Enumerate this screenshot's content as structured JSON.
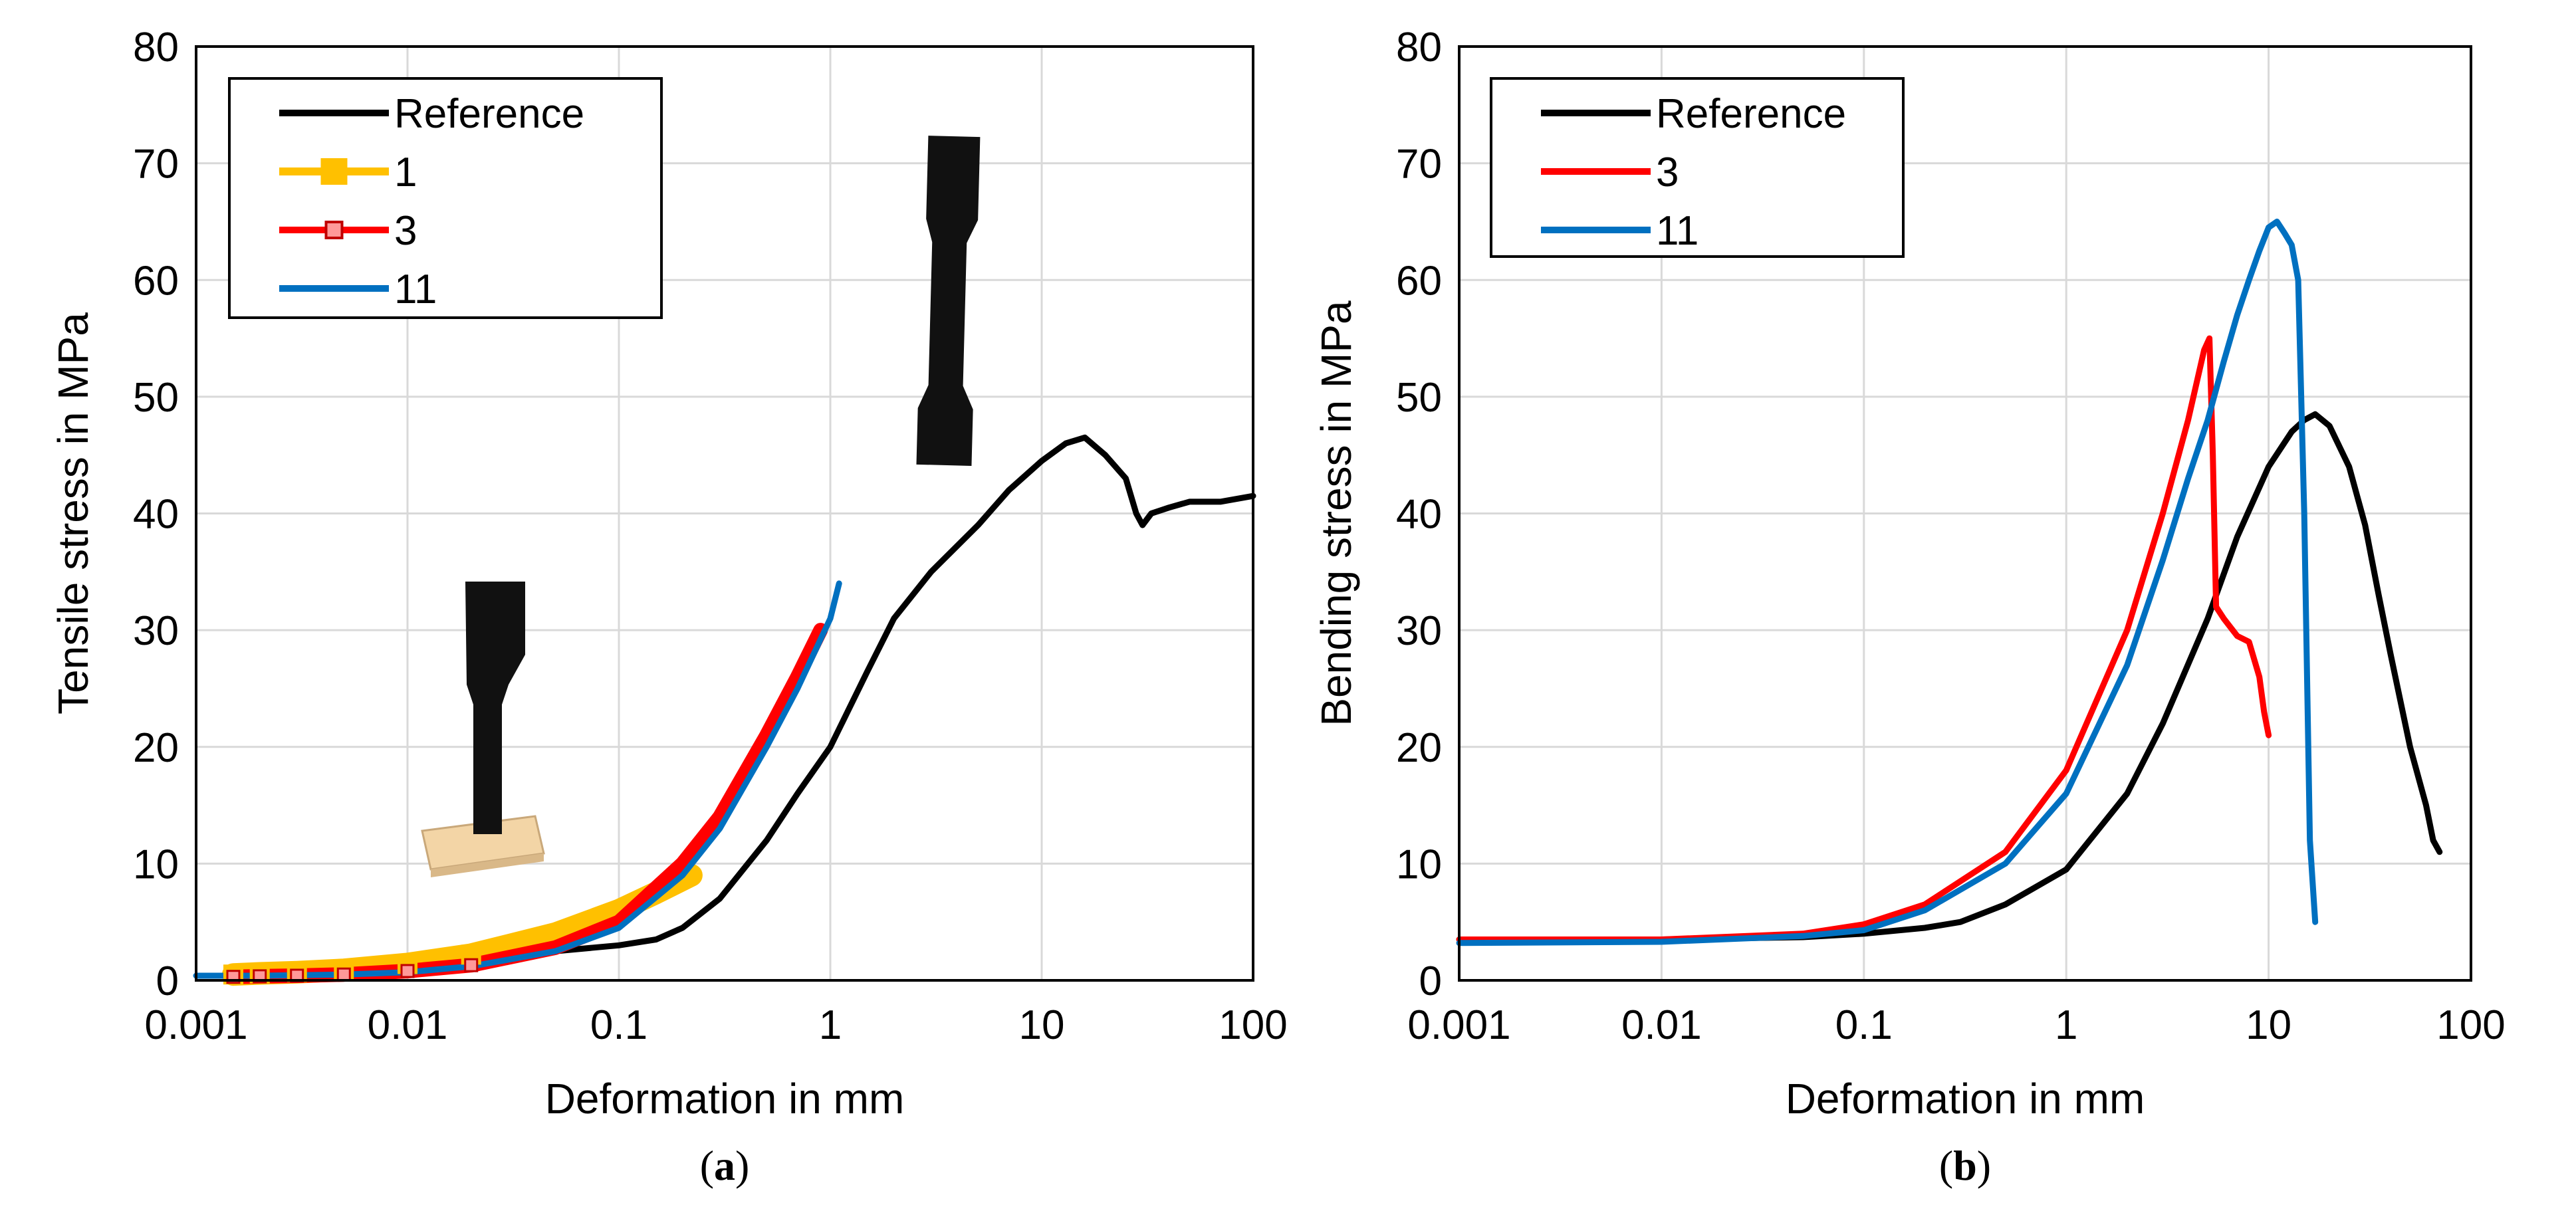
{
  "chart_data": [
    {
      "type": "line",
      "panel": "a",
      "caption": "(a)",
      "caption_letter": "a",
      "xlabel": "Deformation in mm",
      "ylabel": "Tensile stress in MPa",
      "xscale": "log",
      "xlim": [
        0.001,
        100
      ],
      "ylim": [
        0,
        80
      ],
      "xticks": [
        0.001,
        0.01,
        0.1,
        1,
        10,
        100
      ],
      "xtick_labels": [
        "0.001",
        "0.01",
        "0.1",
        "1",
        "10",
        "100"
      ],
      "yticks": [
        0,
        10,
        20,
        30,
        40,
        50,
        60,
        70,
        80
      ],
      "ytick_labels": [
        "0",
        "10",
        "20",
        "30",
        "40",
        "50",
        "60",
        "70",
        "80"
      ],
      "grid": true,
      "legend_position": "top-left",
      "series": [
        {
          "name": "Reference",
          "color": "#000000",
          "marker": "none",
          "x": [
            0.05,
            0.1,
            0.15,
            0.2,
            0.3,
            0.5,
            0.7,
            1,
            1.5,
            2,
            3,
            5,
            7,
            10,
            13,
            16,
            20,
            25,
            28,
            30,
            33,
            40,
            50,
            70,
            100
          ],
          "y": [
            2.5,
            3,
            3.5,
            4.5,
            7,
            12,
            16,
            20,
            26.5,
            31,
            35,
            39,
            42,
            44.5,
            46,
            46.5,
            45,
            43,
            40,
            39,
            40,
            40.5,
            41,
            41,
            41.5
          ]
        },
        {
          "name": "1",
          "color": "#FFC000",
          "marker": "square",
          "x": [
            0.0015,
            0.002,
            0.003,
            0.005,
            0.01,
            0.02,
            0.05,
            0.1,
            0.15,
            0.22
          ],
          "y": [
            0.5,
            0.6,
            0.7,
            0.9,
            1.4,
            2.2,
            4,
            6,
            7.5,
            9
          ]
        },
        {
          "name": "3",
          "color": "#FF0000",
          "marker": "small-square",
          "x": [
            0.0015,
            0.002,
            0.003,
            0.005,
            0.01,
            0.02,
            0.05,
            0.1,
            0.2,
            0.3,
            0.5,
            0.7,
            0.9
          ],
          "y": [
            0.3,
            0.35,
            0.4,
            0.5,
            0.8,
            1.3,
            2.8,
            5,
            10,
            14,
            21,
            26,
            30
          ]
        },
        {
          "name": "11",
          "color": "#0070C0",
          "marker": "none",
          "x": [
            0.001,
            0.002,
            0.005,
            0.01,
            0.02,
            0.05,
            0.1,
            0.2,
            0.3,
            0.5,
            0.7,
            1,
            1.1
          ],
          "y": [
            0.4,
            0.4,
            0.5,
            0.7,
            1.2,
            2.5,
            4.5,
            9,
            13,
            20,
            25,
            31,
            34
          ]
        }
      ]
    },
    {
      "type": "line",
      "panel": "b",
      "caption": "(b)",
      "caption_letter": "b",
      "xlabel": "Deformation in mm",
      "ylabel": "Bending stress in MPa",
      "xscale": "log",
      "xlim": [
        0.001,
        100
      ],
      "ylim": [
        0,
        80
      ],
      "xticks": [
        0.001,
        0.01,
        0.1,
        1,
        10,
        100
      ],
      "xtick_labels": [
        "0.001",
        "0.01",
        "0.1",
        "1",
        "10",
        "100"
      ],
      "yticks": [
        0,
        10,
        20,
        30,
        40,
        50,
        60,
        70,
        80
      ],
      "ytick_labels": [
        "0",
        "10",
        "20",
        "30",
        "40",
        "50",
        "60",
        "70",
        "80"
      ],
      "grid": true,
      "legend_position": "top-left",
      "series": [
        {
          "name": "Reference",
          "color": "#000000",
          "marker": "none",
          "x": [
            0.001,
            0.01,
            0.05,
            0.1,
            0.2,
            0.3,
            0.5,
            1,
            2,
            3,
            5,
            7,
            10,
            13,
            15,
            17,
            20,
            25,
            30,
            35,
            40,
            50,
            60,
            65,
            70
          ],
          "y": [
            3.5,
            3.5,
            3.7,
            4,
            4.5,
            5,
            6.5,
            9.5,
            16,
            22,
            31,
            38,
            44,
            47,
            48,
            48.5,
            47.5,
            44,
            39,
            33,
            28,
            20,
            15,
            12,
            11
          ]
        },
        {
          "name": "3",
          "color": "#FF0000",
          "marker": "none",
          "x": [
            0.001,
            0.01,
            0.05,
            0.1,
            0.2,
            0.5,
            1,
            2,
            3,
            4,
            4.8,
            5.1,
            5.3,
            5.5,
            6,
            7,
            8,
            9,
            9.5,
            10
          ],
          "y": [
            3.5,
            3.5,
            4,
            4.8,
            6.5,
            11,
            18,
            30,
            40,
            48,
            54,
            55,
            45,
            32,
            31,
            29.5,
            29,
            26,
            23,
            21
          ]
        },
        {
          "name": "11",
          "color": "#0070C0",
          "marker": "none",
          "x": [
            0.001,
            0.01,
            0.05,
            0.1,
            0.2,
            0.5,
            1,
            2,
            3,
            4,
            5,
            6,
            7,
            8,
            9,
            10,
            11,
            12,
            13,
            14,
            15,
            16,
            17
          ],
          "y": [
            3.2,
            3.3,
            3.8,
            4.3,
            6,
            10,
            16,
            27,
            36,
            43,
            48,
            53,
            57,
            60,
            62.5,
            64.5,
            65,
            64,
            63,
            60,
            40,
            12,
            5
          ]
        }
      ]
    }
  ]
}
